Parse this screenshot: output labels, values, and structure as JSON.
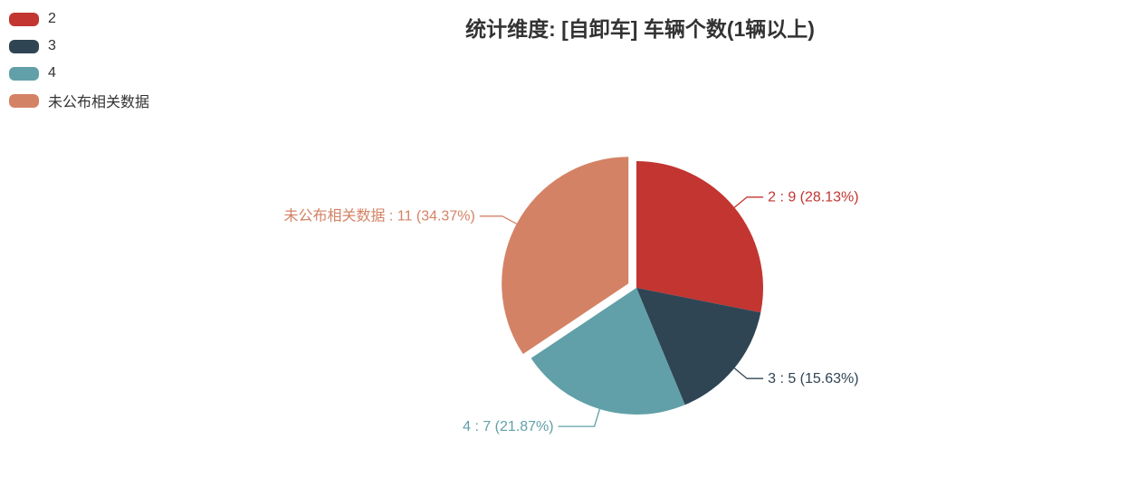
{
  "title": "统计维度: [自卸车] 车辆个数(1辆以上)",
  "legend": {
    "position": "top-left",
    "items": [
      {
        "label": "2",
        "color": "#c23531"
      },
      {
        "label": "3",
        "color": "#2f4554"
      },
      {
        "label": "4",
        "color": "#61a0a8"
      },
      {
        "label": "未公布相关数据",
        "color": "#d48265"
      }
    ]
  },
  "chart_data": {
    "type": "pie",
    "title": "统计维度: [自卸车] 车辆个数(1辆以上)",
    "legend_position": "top-left",
    "start_angle_deg": 0,
    "direction": "clockwise",
    "background": "#ffffff",
    "slices": [
      {
        "label": "2",
        "value": 9,
        "percent": 28.13,
        "callout": "2 : 9 (28.13%)",
        "color": "#c23531",
        "exploded": false
      },
      {
        "label": "3",
        "value": 5,
        "percent": 15.63,
        "callout": "3 : 5 (15.63%)",
        "color": "#2f4554",
        "exploded": false
      },
      {
        "label": "4",
        "value": 7,
        "percent": 21.87,
        "callout": "4 : 7 (21.87%)",
        "color": "#61a0a8",
        "exploded": false
      },
      {
        "label": "未公布相关数据",
        "value": 11,
        "percent": 34.37,
        "callout": "未公布相关数据 : 11 (34.37%)",
        "color": "#d48265",
        "exploded": true
      }
    ]
  }
}
